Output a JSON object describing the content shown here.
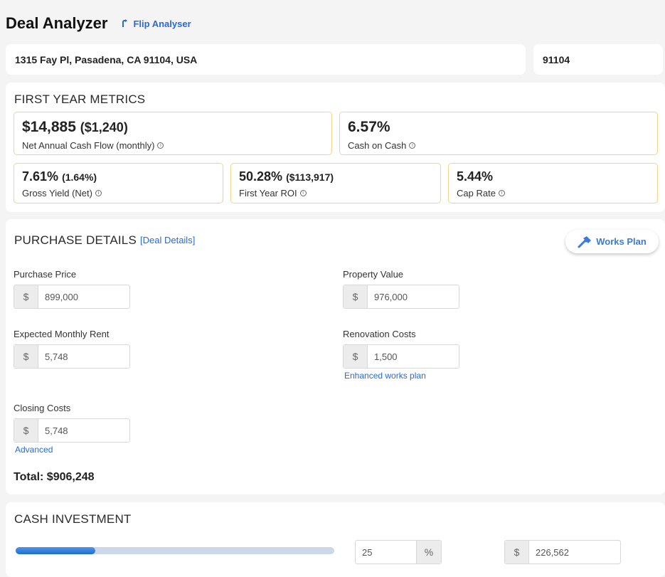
{
  "header": {
    "title": "Deal Analyzer",
    "flip_link": "Flip Analyser"
  },
  "address": {
    "full": "1315 Fay Pl, Pasadena, CA 91104, USA",
    "zip": "91104"
  },
  "first_year_metrics": {
    "title": "FIRST YEAR METRICS",
    "net_cash_flow": {
      "value": "$14,885",
      "sub": "($1,240)",
      "label": "Net Annual Cash Flow (monthly)"
    },
    "cash_on_cash": {
      "value": "6.57%",
      "label": "Cash on Cash"
    },
    "gross_yield": {
      "value": "7.61%",
      "sub": "(1.64%)",
      "label": "Gross Yield (Net)"
    },
    "first_year_roi": {
      "value": "50.28%",
      "sub": "($113,917)",
      "label": "First Year ROI"
    },
    "cap_rate": {
      "value": "5.44%",
      "label": "Cap Rate"
    }
  },
  "purchase_details": {
    "title": "PURCHASE DETAILS",
    "deal_details_link": "[Deal Details]",
    "works_plan_button": "Works Plan",
    "currency_symbol": "$",
    "purchase_price": {
      "label": "Purchase Price",
      "value": "899,000"
    },
    "property_value": {
      "label": "Property Value",
      "value": "976,000"
    },
    "expected_rent": {
      "label": "Expected Monthly Rent",
      "value": "5,748"
    },
    "renovation_costs": {
      "label": "Renovation Costs",
      "value": "1,500"
    },
    "enhanced_link": "Enhanced works plan",
    "closing_costs": {
      "label": "Closing Costs",
      "value": "5,748"
    },
    "advanced_link": "Advanced",
    "total": "Total: $906,248"
  },
  "cash_investment": {
    "title": "CASH INVESTMENT",
    "slider_fraction": 0.25,
    "percent_value": "25",
    "percent_symbol": "%",
    "currency_symbol": "$",
    "amount_value": "226,562"
  },
  "colors": {
    "accent": "#2a6ad2",
    "metric_border": "#f2d58a",
    "slider_fill": "#1f6fd0"
  },
  "icons": {
    "flip": "arrow-up-turn-icon",
    "info": "info-icon",
    "works": "hammer-icon"
  }
}
